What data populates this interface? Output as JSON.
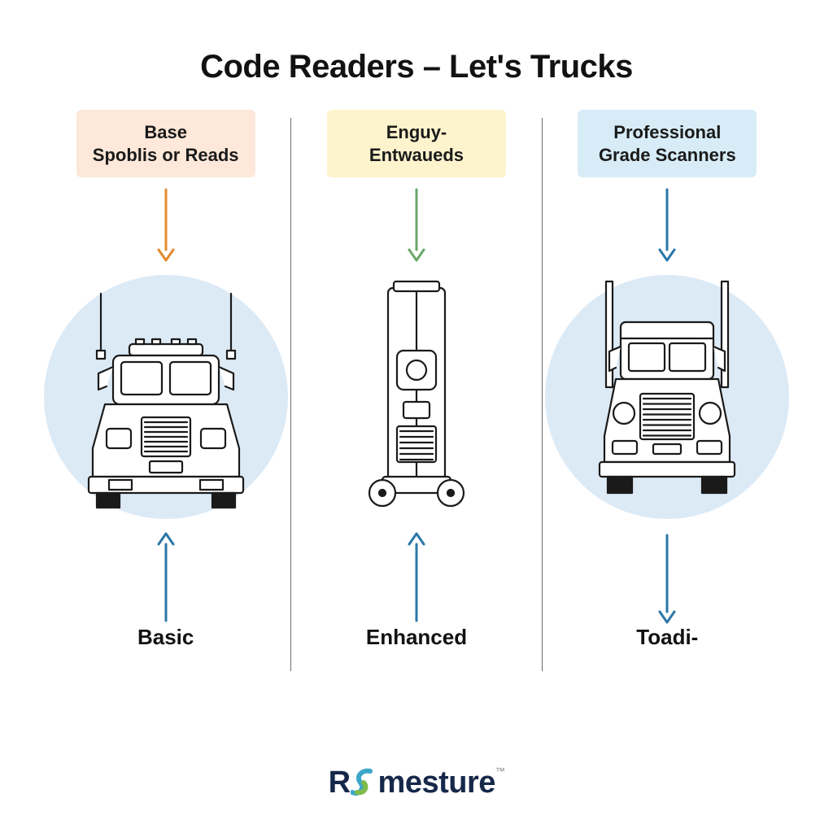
{
  "title": "Code Readers – Let's Trucks",
  "title_fontsize": 40,
  "title_color": "#121212",
  "columns": [
    {
      "header": "Base\nSpoblis or Reads",
      "header_bg": "#fde8d9",
      "header_color": "#1a1a1a",
      "header_fontsize": 22,
      "top_arrow_color": "#e38a2f",
      "top_arrow_dir": "down",
      "circle_color": "#dceaf6",
      "circle_diameter": 300,
      "bottom_arrow_color": "#2b77a8",
      "bottom_arrow_dir": "up",
      "bottom_label": "Basic",
      "bottom_label_fontsize": 26,
      "truck": "semi1"
    },
    {
      "header": "Enguy-\nEntwaueds",
      "header_bg": "#fdf3cd",
      "header_color": "#1a1a1a",
      "header_fontsize": 22,
      "top_arrow_color": "#6aa86a",
      "top_arrow_dir": "down",
      "circle_color": "transparent",
      "circle_diameter": 0,
      "bottom_arrow_color": "#2b77a8",
      "bottom_arrow_dir": "up",
      "bottom_label": "Enhanced",
      "bottom_label_fontsize": 26,
      "truck": "lift"
    },
    {
      "header": "Professional\nGrade Scanners",
      "header_bg": "#d7ecf6",
      "header_color": "#1a1a1a",
      "header_fontsize": 22,
      "top_arrow_color": "#2b77a8",
      "top_arrow_dir": "down",
      "circle_color": "#dceaf6",
      "circle_diameter": 300,
      "bottom_arrow_color": "#2b77a8",
      "bottom_arrow_dir": "down",
      "bottom_label": "Toadi-",
      "bottom_label_fontsize": 26,
      "truck": "semi2"
    }
  ],
  "divider_color": "#6b6b6b",
  "arrow_stroke_width": 3,
  "arrow_length": 95,
  "truck_stroke": "#1a1a1a",
  "truck_stroke_width": 2.2,
  "footer": {
    "text_r": "R",
    "text_rest": "mesture",
    "fontsize": 38,
    "color_main": "#16284a",
    "color_s1": "#3da6c9",
    "color_s2": "#7fbb49"
  }
}
